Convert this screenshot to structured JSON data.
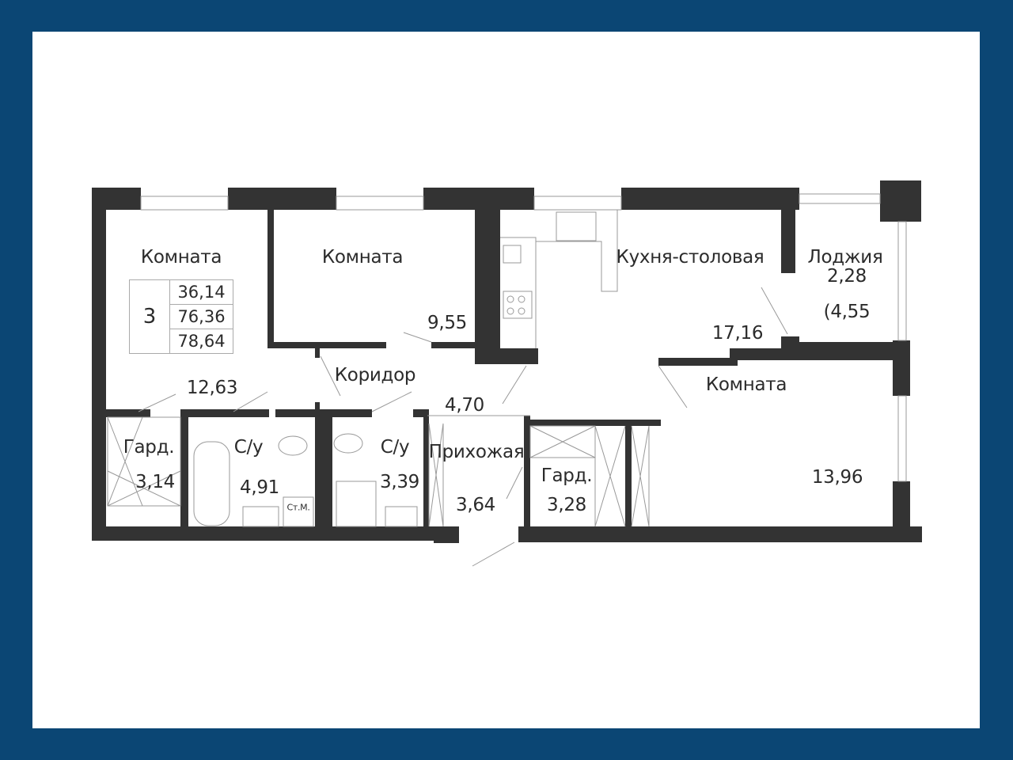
{
  "colors": {
    "frame": "#0b4674",
    "wall": "#333333",
    "background": "#ffffff",
    "fixture_line": "#999999"
  },
  "summary": {
    "rooms": "3",
    "living_area": "36,14",
    "total_area": "76,36",
    "total_with_loggia": "78,64"
  },
  "rooms": [
    {
      "name": "Комната",
      "area": "12,63"
    },
    {
      "name": "Комната",
      "area": "9,55"
    },
    {
      "name": "Кухня-столовая",
      "area": "17,16"
    },
    {
      "name": "Лоджия",
      "area": "2,28",
      "area_full": "(4,55"
    },
    {
      "name": "Коридор",
      "area": "4,70"
    },
    {
      "name": "Комната",
      "area": "13,96"
    },
    {
      "name": "Гард.",
      "area": "3,14"
    },
    {
      "name": "С/у",
      "area": "4,91"
    },
    {
      "name": "С/у",
      "area": "3,39"
    },
    {
      "name": "Прихожая",
      "area": "3,64"
    },
    {
      "name": "Гард.",
      "area": "3,28"
    }
  ],
  "fixtures": {
    "washing_machine": "Ст.М."
  }
}
